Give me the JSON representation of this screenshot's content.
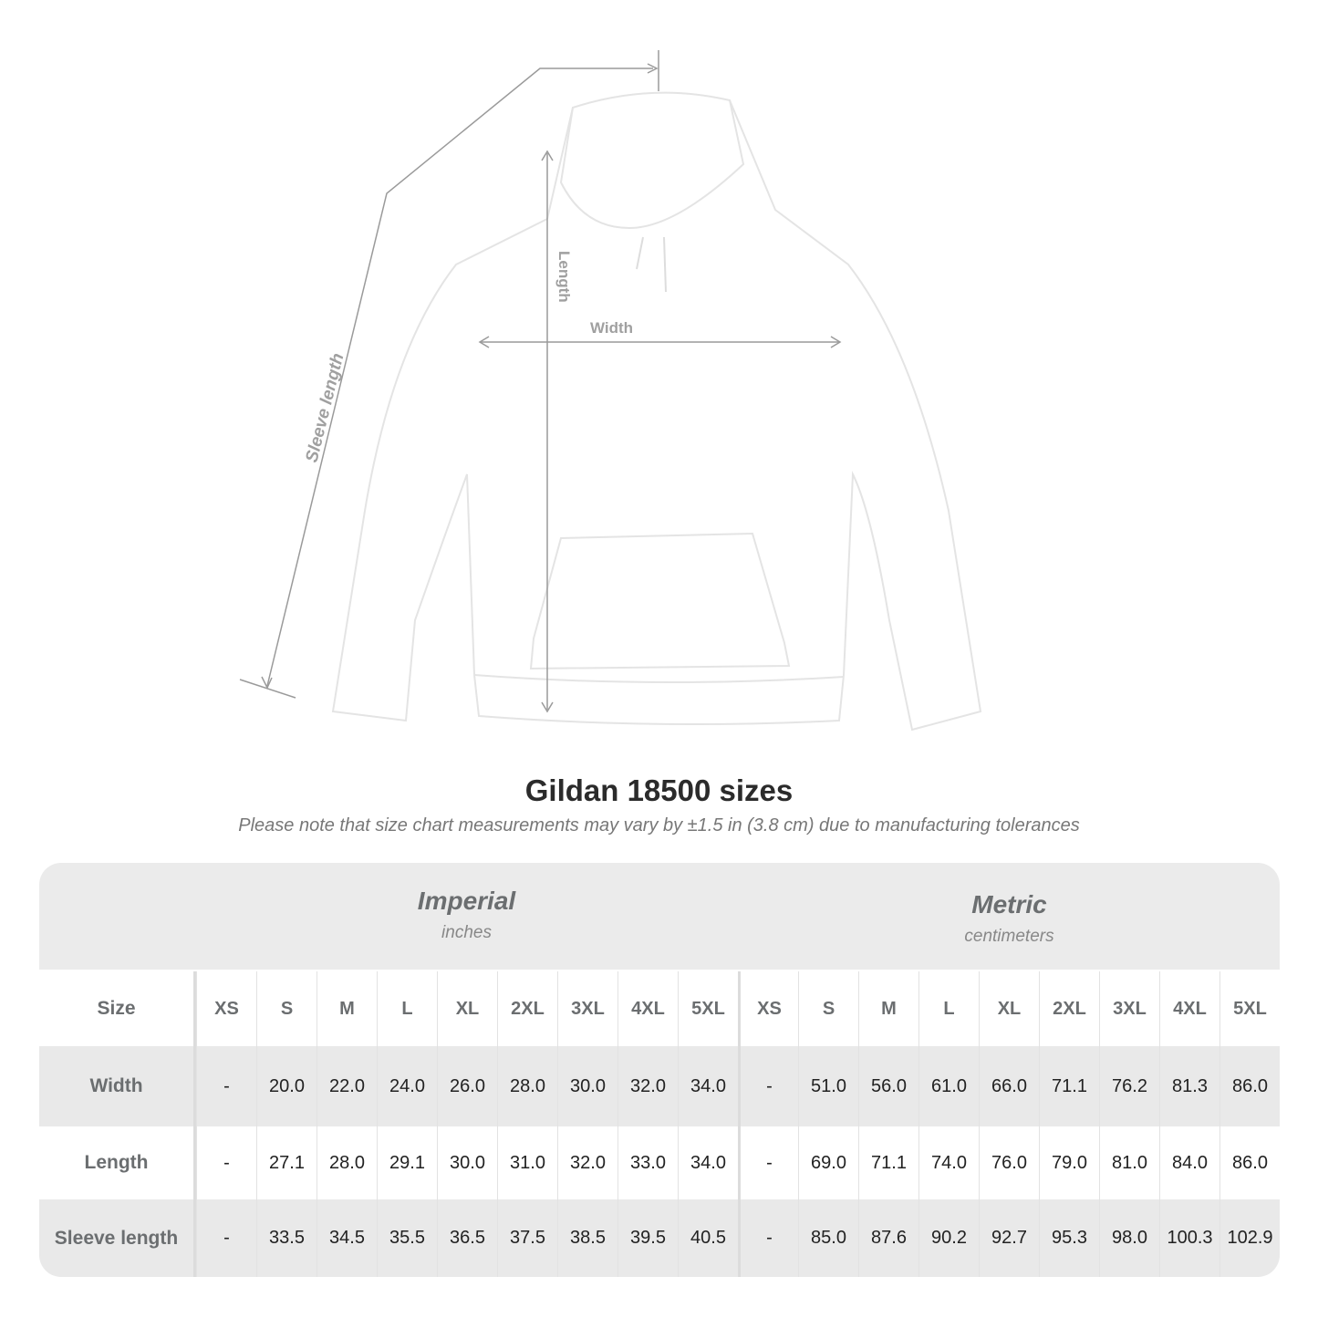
{
  "illustration": {
    "labels": {
      "sleeve": "Sleeve length",
      "length": "Length",
      "width": "Width"
    },
    "colors": {
      "garment": "#ffffff",
      "outline": "#e4e4e4",
      "measure": "#9a9a9a"
    }
  },
  "title": "Gildan 18500 sizes",
  "subtitle": "Please note that size chart measurements may vary by ±1.5 in (3.8 cm) due to manufacturing tolerances",
  "table": {
    "imperial": {
      "name": "Imperial",
      "unit": "inches"
    },
    "metric": {
      "name": "Metric",
      "unit": "centimeters"
    },
    "size_label": "Size",
    "sizes": [
      "XS",
      "S",
      "M",
      "L",
      "XL",
      "2XL",
      "3XL",
      "4XL",
      "5XL"
    ],
    "rows": [
      {
        "label": "Width",
        "imperial": [
          "-",
          "20.0",
          "22.0",
          "24.0",
          "26.0",
          "28.0",
          "30.0",
          "32.0",
          "34.0"
        ],
        "metric": [
          "-",
          "51.0",
          "56.0",
          "61.0",
          "66.0",
          "71.1",
          "76.2",
          "81.3",
          "86.0"
        ]
      },
      {
        "label": "Length",
        "imperial": [
          "-",
          "27.1",
          "28.0",
          "29.1",
          "30.0",
          "31.0",
          "32.0",
          "33.0",
          "34.0"
        ],
        "metric": [
          "-",
          "69.0",
          "71.1",
          "74.0",
          "76.0",
          "79.0",
          "81.0",
          "84.0",
          "86.0"
        ]
      },
      {
        "label": "Sleeve length",
        "imperial": [
          "-",
          "33.5",
          "34.5",
          "35.5",
          "36.5",
          "37.5",
          "38.5",
          "39.5",
          "40.5"
        ],
        "metric": [
          "-",
          "85.0",
          "87.6",
          "90.2",
          "92.7",
          "95.3",
          "98.0",
          "100.3",
          "102.9"
        ]
      }
    ],
    "colors": {
      "header_bg": "#ebebeb",
      "stripe": "#e9e9e9",
      "label": "#6b6e70"
    }
  }
}
